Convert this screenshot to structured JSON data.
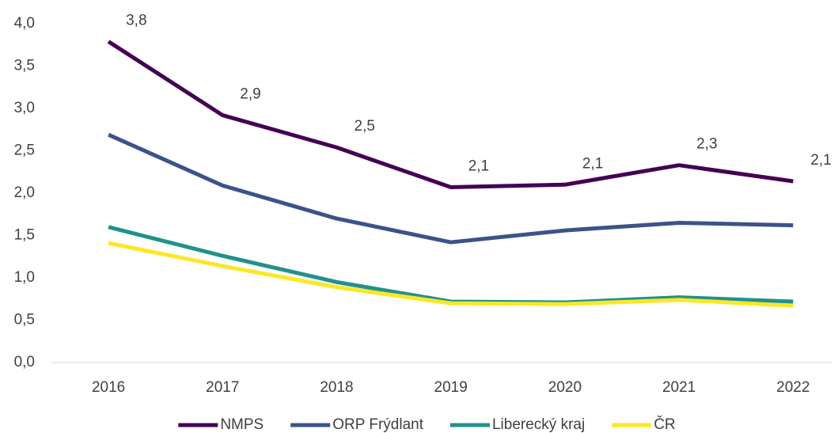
{
  "chart_data": {
    "type": "line",
    "categories": [
      "2016",
      "2017",
      "2018",
      "2019",
      "2020",
      "2021",
      "2022"
    ],
    "series": [
      {
        "name": "NMPS",
        "color": "#440154",
        "values": [
          3.79,
          2.92,
          2.54,
          2.07,
          2.1,
          2.33,
          2.14
        ],
        "value_labels": [
          "3,8",
          "2,9",
          "2,5",
          "2,1",
          "2,1",
          "2,3",
          "2,1"
        ]
      },
      {
        "name": "ORP Frýdlant",
        "color": "#3b528b",
        "values": [
          2.69,
          2.09,
          1.7,
          1.42,
          1.56,
          1.65,
          1.62
        ]
      },
      {
        "name": "Liberecký kraj",
        "color": "#21918c",
        "values": [
          1.6,
          1.26,
          0.95,
          0.72,
          0.71,
          0.77,
          0.72
        ]
      },
      {
        "name": "ČR",
        "color": "#fde725",
        "values": [
          1.41,
          1.14,
          0.89,
          0.7,
          0.69,
          0.74,
          0.67
        ]
      }
    ],
    "ylim": [
      0,
      4
    ],
    "yticks": [
      {
        "value": 0,
        "label": "0,0"
      },
      {
        "value": 0.5,
        "label": "0,5"
      },
      {
        "value": 1,
        "label": "1,0"
      },
      {
        "value": 1.5,
        "label": "1,5"
      },
      {
        "value": 2,
        "label": "2,0"
      },
      {
        "value": 2.5,
        "label": "2,5"
      },
      {
        "value": 3,
        "label": "3,0"
      },
      {
        "value": 3.5,
        "label": "3,5"
      },
      {
        "value": 4,
        "label": "4,0"
      }
    ],
    "grid": false,
    "legend": "bottom"
  }
}
